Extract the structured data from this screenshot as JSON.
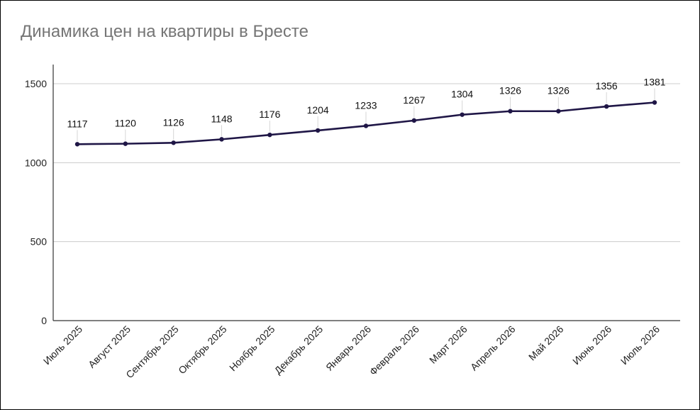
{
  "chart_data": {
    "type": "line",
    "title": "Динамика цен на квартиры в Бресте",
    "xlabel": "",
    "ylabel": "",
    "categories": [
      "Июль 2025",
      "Август 2025",
      "Сентябрь 2025",
      "Октябрь 2025",
      "Ноябрь 2025",
      "Декабрь 2025",
      "Январь 2026",
      "Февраль 2026",
      "Март 2026",
      "Апрель 2026",
      "Май 2026",
      "Июнь 2026",
      "Июль 2026"
    ],
    "series": [
      {
        "values": [
          1117,
          1120,
          1126,
          1148,
          1176,
          1204,
          1233,
          1267,
          1304,
          1326,
          1326,
          1356,
          1381
        ],
        "data_labels": [
          "1117",
          "1120",
          "1126",
          "1148",
          "1176",
          "1204",
          "1233",
          "1267",
          "1304",
          "1326",
          "1326",
          "1356",
          "1381"
        ],
        "color": "#1f1646"
      }
    ],
    "ylim": [
      0,
      1500
    ],
    "yticks": [
      0,
      500,
      1000,
      1500
    ],
    "ytick_labels": [
      "0",
      "500",
      "1000",
      "1500"
    ],
    "grid": true,
    "legend": "none"
  }
}
